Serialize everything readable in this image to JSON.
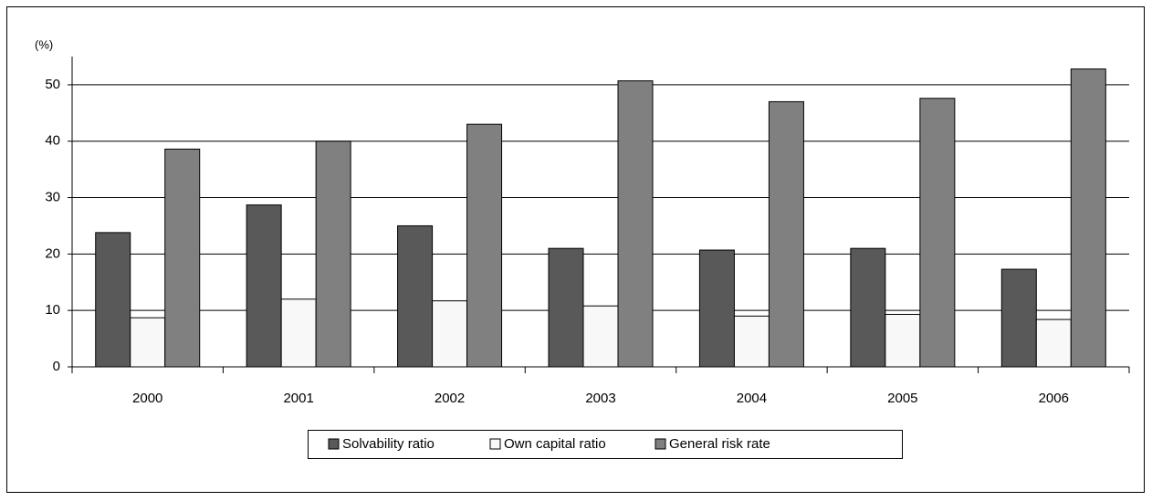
{
  "chart_data": {
    "type": "bar",
    "y_label": "(%)",
    "categories": [
      "2000",
      "2001",
      "2002",
      "2003",
      "2004",
      "2005",
      "2006"
    ],
    "series": [
      {
        "name": "Solvability ratio",
        "color": "#595959",
        "values": [
          23.8,
          28.7,
          25,
          21,
          20.7,
          21,
          17.3
        ]
      },
      {
        "name": "Own capital ratio",
        "color": "#f8f8f8",
        "values": [
          8.7,
          12,
          11.7,
          10.8,
          9,
          9.3,
          8.4
        ]
      },
      {
        "name": "General risk rate",
        "color": "#808080",
        "values": [
          38.6,
          40,
          43,
          50.7,
          47,
          47.6,
          52.8
        ]
      }
    ],
    "ylim": [
      0,
      55
    ],
    "yticks": [
      0,
      10,
      20,
      30,
      40,
      50
    ],
    "grid": true,
    "legend": "bottom"
  }
}
